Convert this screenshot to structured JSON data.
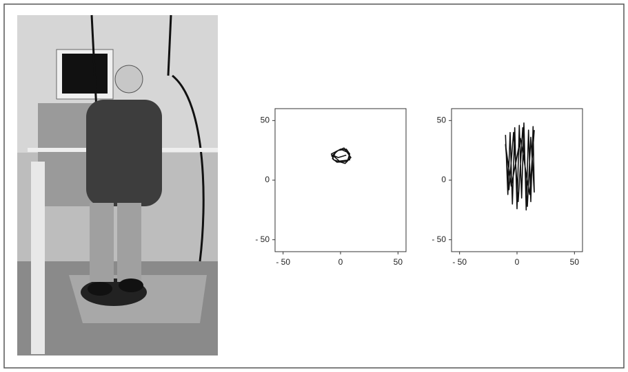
{
  "chart_data": [
    {
      "type": "line",
      "color": "#111111",
      "x": [
        -8,
        -2,
        5,
        8,
        6,
        -3,
        -7,
        -4,
        3,
        9,
        4,
        -6,
        -8,
        0,
        7,
        8,
        -1,
        -7,
        -2,
        5
      ],
      "values": [
        20,
        25,
        26,
        22,
        16,
        15,
        18,
        24,
        27,
        19,
        14,
        17,
        22,
        26,
        23,
        17,
        16,
        21,
        19,
        21
      ],
      "xlim": [
        -57,
        57
      ],
      "ylim": [
        -60,
        60
      ],
      "xticks": [
        {
          "value": -50,
          "label": "- 50"
        },
        0,
        50
      ],
      "yticks": [
        {
          "value": -50,
          "label": "- 50"
        },
        0,
        50
      ]
    },
    {
      "type": "line",
      "color": "#111111",
      "x": [
        -10,
        -8,
        -6,
        -4,
        -2,
        0,
        2,
        4,
        6,
        8,
        10,
        12,
        14,
        15,
        12,
        9,
        5,
        1,
        -3,
        -7,
        -10,
        -5,
        3,
        11,
        15
      ],
      "values": [
        38,
        -12,
        40,
        -20,
        44,
        -24,
        46,
        -15,
        48,
        -25,
        42,
        -18,
        45,
        -10,
        36,
        -22,
        44,
        -18,
        40,
        -8,
        30,
        -5,
        35,
        -12,
        42
      ],
      "xlim": [
        -57,
        57
      ],
      "ylim": [
        -60,
        60
      ],
      "xticks": [
        {
          "value": -50,
          "label": "- 50"
        },
        0,
        50
      ],
      "yticks": [
        {
          "value": -50,
          "label": "- 50"
        },
        0,
        50
      ]
    }
  ]
}
